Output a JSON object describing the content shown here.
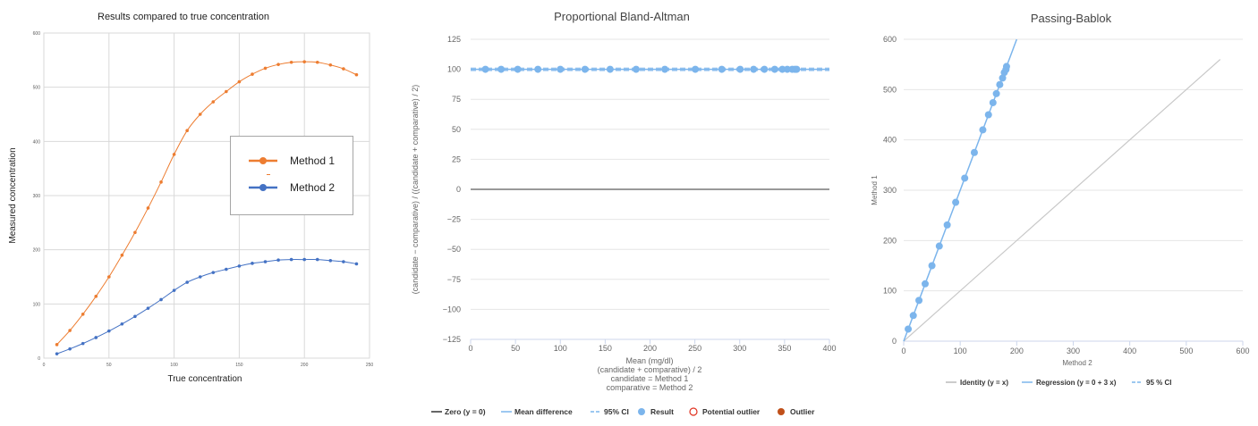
{
  "chart_data": [
    {
      "type": "line",
      "title": "Results compared to true concentration",
      "xlabel": "True concentration",
      "ylabel": "Measured concentration",
      "xlim": [
        0,
        250
      ],
      "ylim": [
        0,
        600
      ],
      "x_ticks": [
        "0",
        "50",
        "100",
        "150",
        "200",
        "250"
      ],
      "y_ticks": [
        "0",
        "100",
        "200",
        "300",
        "400",
        "500",
        "600"
      ],
      "grid": true,
      "legend_position": "right",
      "x": [
        10,
        20,
        30,
        40,
        50,
        60,
        70,
        80,
        90,
        100,
        110,
        120,
        130,
        140,
        150,
        160,
        170,
        180,
        190,
        200,
        210,
        220,
        230,
        240
      ],
      "series": [
        {
          "name": "Method 1",
          "color": "#ED7D31",
          "values": [
            25,
            51,
            81,
            114,
            150,
            190,
            232,
            277,
            325,
            376,
            420,
            450,
            473,
            492,
            510,
            524,
            535,
            542,
            546,
            547,
            546,
            541,
            534,
            523
          ]
        },
        {
          "name": "Method 2",
          "color": "#4472C4",
          "values": [
            8,
            17,
            27,
            38,
            50,
            63,
            77,
            92,
            108,
            125,
            140,
            150,
            158,
            164,
            170,
            175,
            178,
            181,
            182,
            182,
            182,
            180,
            178,
            174
          ]
        }
      ]
    },
    {
      "type": "scatter",
      "title": "Proportional Bland-Altman",
      "xlabel": "Mean (mg/dl)",
      "xlabel_extra": [
        "(candidate + comparative) / 2",
        "candidate = Method 1",
        "comparative = Method 2"
      ],
      "ylabel": "(candidate − comparative) / ((candidate + comparative) / 2)",
      "xlim": [
        0,
        400
      ],
      "ylim": [
        -125,
        125
      ],
      "x_ticks": [
        "0",
        "50",
        "100",
        "150",
        "200",
        "250",
        "300",
        "350",
        "400"
      ],
      "y_ticks": [
        "125",
        "100",
        "75",
        "50",
        "25",
        "0",
        "−25",
        "−50",
        "−75",
        "−100",
        "−125"
      ],
      "grid": true,
      "zero_line": 0,
      "mean_difference": 100,
      "ci_lower": 99,
      "ci_upper": 101,
      "x": [
        16.5,
        34,
        52.5,
        75,
        100,
        127.5,
        155.5,
        184.5,
        216.5,
        250.5,
        280,
        300.5,
        315.5,
        327.5,
        339,
        347.5,
        353,
        358.5,
        361.5,
        363.5
      ],
      "values": [
        100,
        100,
        100,
        100,
        100,
        100,
        100,
        100,
        100,
        100,
        100,
        100,
        100,
        100,
        100,
        100,
        100,
        100,
        100,
        100
      ],
      "legend": [
        {
          "label": "Zero (y = 0)",
          "kind": "line",
          "color": "#333333"
        },
        {
          "label": "Mean difference",
          "kind": "line",
          "color": "#7cb5ec"
        },
        {
          "label": "95% CI",
          "kind": "dash",
          "color": "#7cb5ec"
        },
        {
          "label": "Result",
          "kind": "dot",
          "color": "#7cb5ec"
        },
        {
          "label": "Potential outlier",
          "kind": "ring",
          "color": "#e0301e"
        },
        {
          "label": "Outlier",
          "kind": "dot",
          "color": "#c0501a"
        }
      ]
    },
    {
      "type": "scatter",
      "title": "Passing-Bablok",
      "xlabel": "Method 2",
      "ylabel": "Method 1",
      "xlim": [
        0,
        600
      ],
      "ylim": [
        0,
        600
      ],
      "x_ticks": [
        "0",
        "100",
        "200",
        "300",
        "400",
        "500",
        "600"
      ],
      "y_ticks": [
        "0",
        "100",
        "200",
        "300",
        "400",
        "500",
        "600"
      ],
      "grid": true,
      "identity_line": {
        "x_end": 560
      },
      "regression": {
        "intercept": 0,
        "slope": 3
      },
      "x": [
        8,
        17,
        27,
        38,
        50,
        63,
        77,
        92,
        108,
        125,
        140,
        150,
        158,
        164,
        170,
        175,
        178,
        181,
        182
      ],
      "values": [
        24,
        51,
        81,
        114,
        150,
        189,
        231,
        276,
        324,
        375,
        420,
        450,
        474,
        492,
        510,
        523,
        534,
        540,
        546
      ],
      "legend": [
        {
          "label": "Identity (y = x)",
          "kind": "line",
          "color": "#bbbbbb"
        },
        {
          "label": "Regression (y = 0 + 3 x)",
          "kind": "line",
          "color": "#7cb5ec"
        },
        {
          "label": "95 % CI",
          "kind": "dash",
          "color": "#7cb5ec"
        }
      ]
    }
  ]
}
